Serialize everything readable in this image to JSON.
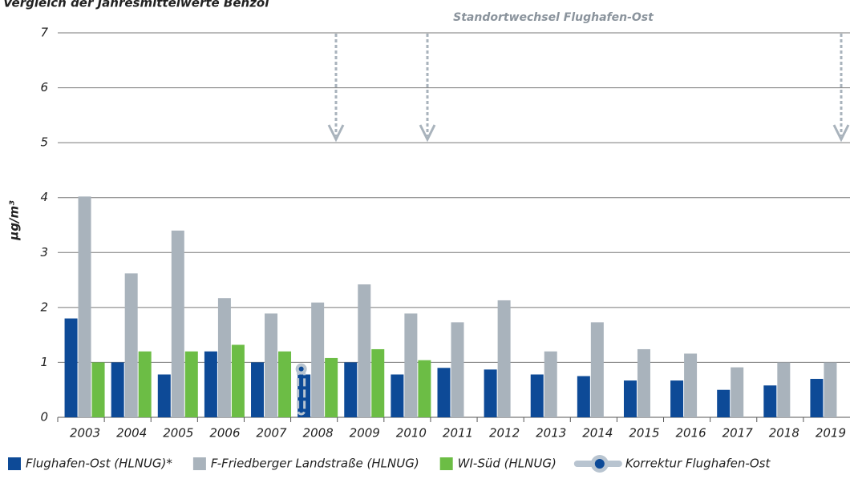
{
  "chart_data": {
    "type": "bar",
    "title": "Vergleich der Jahresmittelwerte Benzol",
    "annotation": "Standortwechsel Flughafen-Ost",
    "y_label": "µg/m³",
    "categories": [
      "2003",
      "2004",
      "2005",
      "2006",
      "2007",
      "2008",
      "2009",
      "2010",
      "2011",
      "2012",
      "2013",
      "2014",
      "2015",
      "2016",
      "2017",
      "2018",
      "2019"
    ],
    "series": [
      {
        "name": "Flughafen-Ost (HLNUG)*",
        "color": "#0d4a97",
        "values": [
          1.8,
          1.0,
          0.78,
          1.2,
          1.0,
          0.78,
          1.0,
          0.78,
          0.9,
          0.87,
          0.78,
          0.75,
          0.67,
          0.67,
          0.5,
          0.58,
          0.7
        ]
      },
      {
        "name": "F-Friedberger Landstraße (HLNUG)",
        "color": "#a9b3bc",
        "values": [
          4.02,
          2.62,
          3.4,
          2.17,
          1.89,
          2.09,
          2.42,
          1.89,
          1.73,
          2.13,
          1.2,
          1.73,
          1.24,
          1.16,
          0.91,
          1.0,
          1.0
        ]
      },
      {
        "name": "WI-Süd (HLNUG)",
        "color": "#6cbd45",
        "values": [
          1.0,
          1.2,
          1.2,
          1.32,
          1.2,
          1.08,
          1.24,
          1.04,
          null,
          null,
          null,
          null,
          null,
          null,
          null,
          null,
          null
        ]
      },
      {
        "name": "Korrektur Flughafen-Ost",
        "color": "#b8c4d0",
        "marker": true,
        "values": [
          null,
          null,
          null,
          null,
          null,
          0.88,
          null,
          null,
          null,
          null,
          null,
          null,
          null,
          null,
          null,
          null,
          null
        ]
      }
    ],
    "ylim": [
      0,
      7
    ],
    "yticks": [
      0,
      1,
      2,
      3,
      4,
      5,
      6,
      7
    ],
    "grid": true,
    "legend": "bottom"
  }
}
